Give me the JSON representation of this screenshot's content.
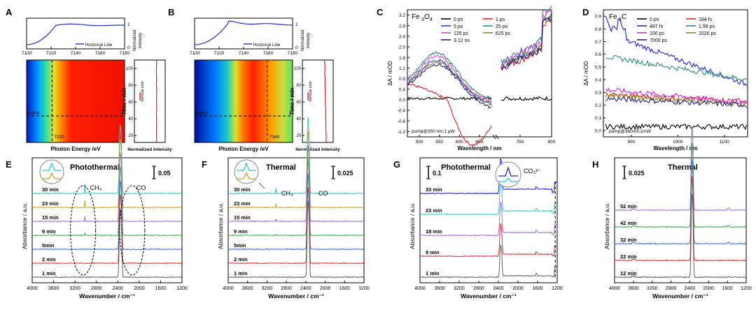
{
  "panel_labels": [
    "A",
    "B",
    "C",
    "D",
    "E",
    "F",
    "G",
    "H"
  ],
  "chart_data": [
    {
      "panel": "A",
      "type": "heatmap",
      "top_plot": {
        "legend": "Horizonal Line",
        "ylabel": "Normalized intensity",
        "x_ticks": [
          "7100",
          "7120",
          "7140",
          "7160",
          "7180"
        ],
        "y_ticks": [
          "0",
          "1"
        ]
      },
      "map": {
        "xlabel": "Photon Energy /eV",
        "ylabel": "Time / min",
        "y_ticks": [
          "100",
          "80",
          "60",
          "40",
          "20"
        ],
        "marker_energy": "7120",
        "marker_value": "0.004"
      },
      "side_plot": {
        "xlabel": "Normalized Intensity",
        "legend": "Vertical Line"
      }
    },
    {
      "panel": "B",
      "type": "heatmap",
      "top_plot": {
        "legend": "Horizonal Line",
        "ylabel": "Normalized intensity",
        "x_ticks": [
          "7100",
          "7120",
          "7140",
          "7160",
          "7180"
        ],
        "y_ticks": [
          "0",
          "1"
        ]
      },
      "map": {
        "xlabel": "Photon Energy /eV",
        "ylabel": "Time / min",
        "y_ticks": [
          "100",
          "80",
          "60",
          "40",
          "20"
        ],
        "marker_energy": "7160",
        "marker_value": "0.023"
      },
      "side_plot": {
        "xlabel": "Normalized Intensity",
        "legend": "Vertical Line"
      }
    },
    {
      "panel": "C",
      "type": "line",
      "title": "Fe3O4",
      "xlabel": "Wavelength / nm",
      "ylabel": "ΔA / mOD",
      "x_ticks": [
        "500",
        "550",
        "600",
        "650",
        "750",
        "800"
      ],
      "y_ticks": [
        "3.2",
        "2.8",
        "2.4",
        "2.0",
        "1.6",
        "1.2",
        "0.8",
        "0.4",
        "0.0",
        "-0.4",
        "-0.8",
        "-1.2"
      ],
      "ylim": [
        -1.4,
        3.4
      ],
      "note": "pump@350 nm;1 μW",
      "series": [
        {
          "name": "0 ps",
          "color": "#000000"
        },
        {
          "name": "1 ps",
          "color": "#e02020"
        },
        {
          "name": "5 ps",
          "color": "#2040e0"
        },
        {
          "name": "25 ps",
          "color": "#2a8a80"
        },
        {
          "name": "125 ps",
          "color": "#e040e0"
        },
        {
          "name": "625 ps",
          "color": "#8a8a20"
        },
        {
          "name": "3.12 ns",
          "color": "#202080"
        }
      ]
    },
    {
      "panel": "D",
      "type": "line",
      "title": "Fe3C",
      "xlabel": "Wavelength / nm",
      "ylabel": "ΔA / mOD",
      "x_ticks": [
        "900",
        "1000",
        "1100"
      ],
      "y_ticks": [
        "0.9",
        "0.8",
        "0.7",
        "0.6",
        "0.5",
        "0.4",
        "0.3",
        "0.2",
        "0.1",
        "0.0"
      ],
      "ylim": [
        -0.05,
        0.95
      ],
      "note": "pump@360nm;1mW",
      "series": [
        {
          "name": "0 ps",
          "color": "#000000"
        },
        {
          "name": "184 fs",
          "color": "#e02020"
        },
        {
          "name": "487 fs",
          "color": "#2020e0"
        },
        {
          "name": "1.99 ps",
          "color": "#2a8a80"
        },
        {
          "name": "100 ps",
          "color": "#e020e0"
        },
        {
          "name": "1020 ps",
          "color": "#8a8a20"
        },
        {
          "name": "7000 ps",
          "color": "#202080"
        }
      ]
    },
    {
      "panel": "E",
      "type": "line",
      "title": "Photothermal",
      "xlabel": "Wavenumber / cm⁻¹",
      "ylabel": "Absorbance / a.u.",
      "scale": "0.05",
      "x_ticks": [
        "4000",
        "3600",
        "3200",
        "2800",
        "2400",
        "2000",
        "1600",
        "1200"
      ],
      "annotations": [
        "CH₄",
        "CO"
      ],
      "series": [
        {
          "name": "30 min",
          "color": "#30c8c8"
        },
        {
          "name": "23 min",
          "color": "#c8a020"
        },
        {
          "name": "15 min",
          "color": "#9a70d8"
        },
        {
          "name": "9 min",
          "color": "#40a850"
        },
        {
          "name": "5min",
          "color": "#3070d8"
        },
        {
          "name": "2 min",
          "color": "#e03030"
        },
        {
          "name": "1 min",
          "color": "#606060"
        }
      ]
    },
    {
      "panel": "F",
      "type": "line",
      "title": "Thermal",
      "xlabel": "Wavenumber / cm⁻¹",
      "ylabel": "Absorbance / a.u.",
      "scale": "0.025",
      "x_ticks": [
        "4000",
        "3600",
        "3200",
        "2800",
        "2400",
        "2000",
        "1600",
        "1200"
      ],
      "annotations": [
        "CH₄",
        "CO"
      ],
      "series": [
        {
          "name": "30 min",
          "color": "#30c8c8"
        },
        {
          "name": "23 min",
          "color": "#c8a020"
        },
        {
          "name": "15 min",
          "color": "#9a70d8"
        },
        {
          "name": "9 min",
          "color": "#40a850"
        },
        {
          "name": "5min",
          "color": "#3070d8"
        },
        {
          "name": "2 min",
          "color": "#e03030"
        },
        {
          "name": "1 min",
          "color": "#606060"
        }
      ]
    },
    {
      "panel": "G",
      "type": "line",
      "title": "Photothermal",
      "xlabel": "Wavenumber / cm⁻¹",
      "ylabel": "Absorbance / a.u.",
      "scale": "0.1",
      "x_ticks": [
        "4000",
        "3600",
        "3200",
        "2800",
        "2400",
        "2000",
        "1600",
        "1200"
      ],
      "annotations": [
        "CO₃²⁻"
      ],
      "series": [
        {
          "name": "33 min",
          "color": "#2020d8"
        },
        {
          "name": "23 min",
          "color": "#30c8c8"
        },
        {
          "name": "18 min",
          "color": "#9a70d8"
        },
        {
          "name": "9 min",
          "color": "#e03030"
        },
        {
          "name": "1 min",
          "color": "#606060"
        }
      ]
    },
    {
      "panel": "H",
      "type": "line",
      "title": "Thermal",
      "xlabel": "Wavenumber / cm⁻¹",
      "ylabel": "Absorbance / a.u.",
      "scale": "0.025",
      "x_ticks": [
        "4000",
        "3600",
        "3200",
        "2800",
        "2400",
        "2000",
        "1600",
        "1200"
      ],
      "series": [
        {
          "name": "52 min",
          "color": "#a070d8"
        },
        {
          "name": "42 min",
          "color": "#40a850"
        },
        {
          "name": "32 min",
          "color": "#3070d8"
        },
        {
          "name": "22 min",
          "color": "#e03030"
        },
        {
          "name": "12 min",
          "color": "#606060"
        }
      ]
    }
  ]
}
